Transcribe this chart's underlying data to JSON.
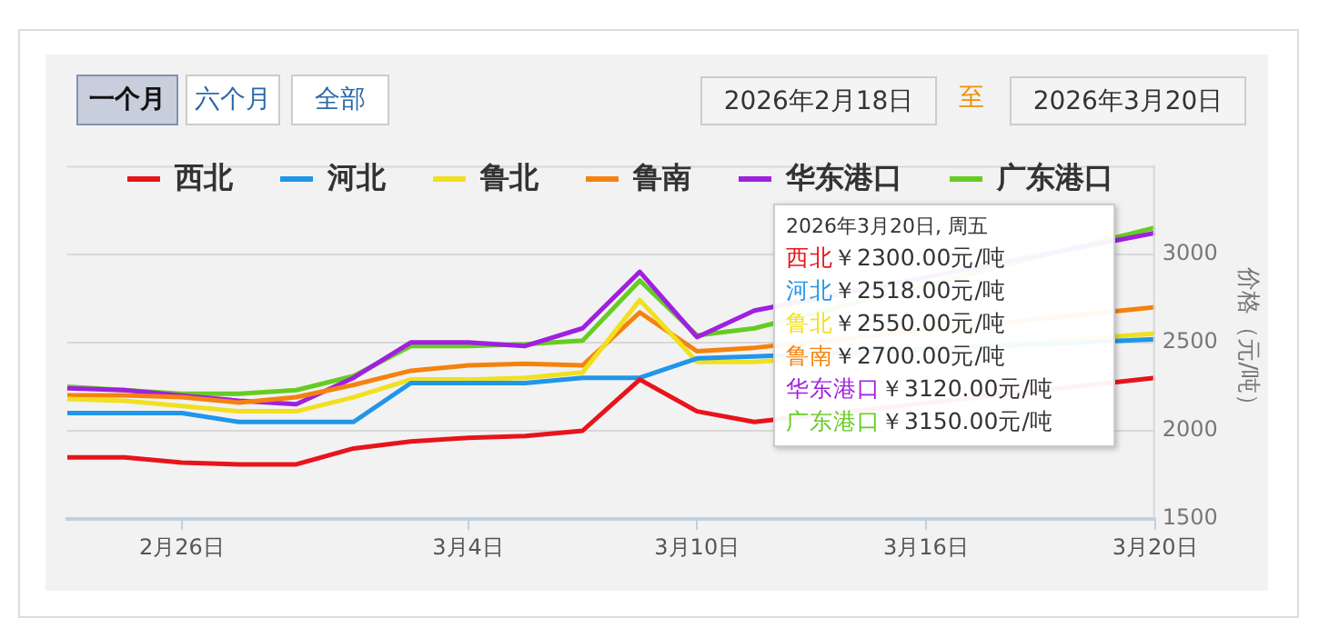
{
  "chart_data": {
    "type": "line",
    "ylabel": "价格（元/吨）",
    "categories": [
      null,
      null,
      "2月26日",
      null,
      null,
      null,
      null,
      "3月4日",
      null,
      null,
      null,
      "3月10日",
      null,
      null,
      null,
      "3月16日",
      null,
      null,
      null,
      "3月20日"
    ],
    "series": [
      {
        "name": "西北",
        "color": "#e8141b",
        "values": [
          1850,
          1850,
          1820,
          1810,
          1810,
          1900,
          1940,
          1960,
          1970,
          2000,
          2290,
          2110,
          2050,
          null,
          null,
          null,
          null,
          null,
          null,
          2300
        ]
      },
      {
        "name": "河北",
        "color": "#2196e8",
        "values": [
          2100,
          2100,
          2100,
          2050,
          2050,
          2050,
          2270,
          2270,
          2270,
          2300,
          2300,
          2410,
          2420,
          null,
          null,
          null,
          null,
          null,
          null,
          2518
        ]
      },
      {
        "name": "鲁北",
        "color": "#f0e020",
        "values": [
          2180,
          2170,
          2140,
          2110,
          2110,
          2190,
          2290,
          2290,
          2300,
          2330,
          2740,
          2390,
          2390,
          null,
          null,
          null,
          null,
          null,
          null,
          2550
        ]
      },
      {
        "name": "鲁南",
        "color": "#f5820f",
        "values": [
          2200,
          2200,
          2190,
          2160,
          2190,
          2260,
          2340,
          2370,
          2380,
          2370,
          2670,
          2450,
          2470,
          null,
          null,
          null,
          null,
          null,
          null,
          2700
        ]
      },
      {
        "name": "华东港口",
        "color": "#a020e0",
        "values": [
          2240,
          2230,
          2200,
          2170,
          2150,
          2300,
          2500,
          2500,
          2480,
          2580,
          2900,
          2530,
          2680,
          null,
          null,
          null,
          null,
          null,
          null,
          3120
        ]
      },
      {
        "name": "广东港口",
        "color": "#66cc22",
        "values": [
          2250,
          2230,
          2210,
          2210,
          2230,
          2310,
          2480,
          2480,
          2490,
          2510,
          2850,
          2540,
          2580,
          null,
          null,
          null,
          null,
          null,
          null,
          3150
        ]
      }
    ],
    "ylim": [
      1500,
      3500
    ],
    "yticks": [
      1500,
      2000,
      2500,
      3000
    ],
    "grid": "y",
    "legend": "top",
    "line_style": "solid",
    "annotations": [
      "一个月",
      "六个月",
      "全部",
      "2026年2月18日",
      "至",
      "2026年3月20日",
      "2026年3月20日, 周五",
      "西北￥2300.00元/吨",
      "河北￥2518.00元/吨",
      "鲁北￥2550.00元/吨",
      "鲁南￥2700.00元/吨",
      "华东港口￥3120.00元/吨",
      "广东港口￥3150.00元/吨"
    ]
  }
}
